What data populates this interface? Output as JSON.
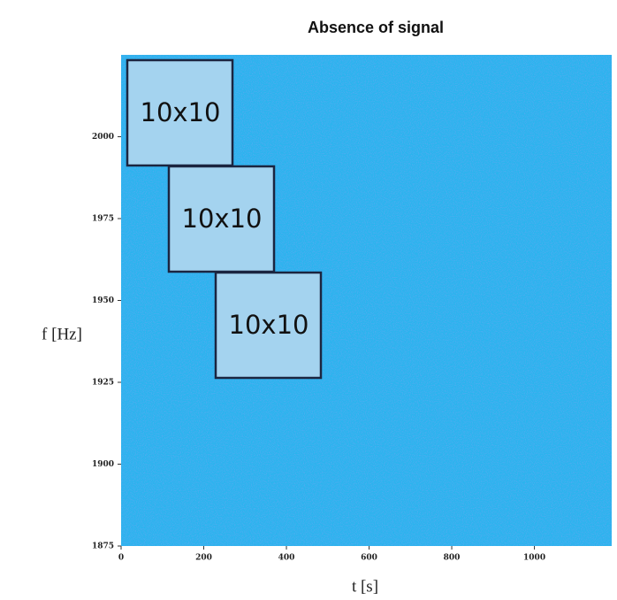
{
  "chart_data": {
    "type": "image",
    "title": "Absence of signal",
    "xlabel": "t [s]",
    "ylabel": "f [Hz]",
    "xlim": [
      0,
      1187
    ],
    "xticks": [
      0,
      200,
      400,
      600,
      800,
      1000
    ],
    "ylim": [
      1875,
      2025
    ],
    "yticks": [
      1875,
      1900,
      1925,
      1950,
      1975,
      2000
    ],
    "color": "#2ab4ee",
    "annotations": [
      "10x10",
      "10x10",
      "10x10"
    ]
  }
}
